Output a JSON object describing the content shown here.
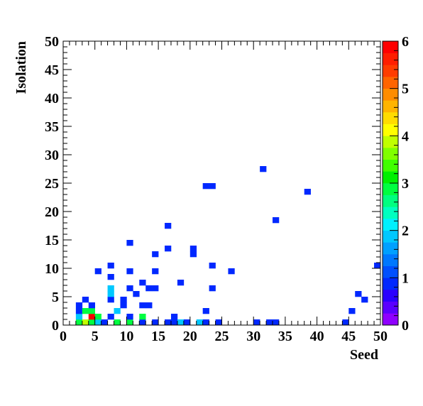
{
  "chart_data": {
    "type": "heatmap",
    "title": "",
    "xlabel": "Seed",
    "ylabel": "Isolation",
    "xlim": [
      0,
      50
    ],
    "ylim": [
      0,
      50
    ],
    "zlim": [
      0,
      6
    ],
    "bin_width": 1,
    "x_ticks": [
      "0",
      "5",
      "10",
      "15",
      "20",
      "25",
      "30",
      "35",
      "40",
      "45",
      "50"
    ],
    "y_ticks": [
      "0",
      "5",
      "10",
      "15",
      "20",
      "25",
      "30",
      "35",
      "40",
      "45",
      "50"
    ],
    "z_ticks": [
      "0",
      "1",
      "2",
      "3",
      "4",
      "5",
      "6"
    ],
    "palette": [
      "#8f00ff",
      "#5a00ff",
      "#2a00ff",
      "#0028ff",
      "#0050ff",
      "#0078ff",
      "#00a0ff",
      "#00c8ff",
      "#00f0ff",
      "#00ffc0",
      "#00ff80",
      "#00ff40",
      "#00f000",
      "#40ff00",
      "#80ff00",
      "#c0ff00",
      "#ffff00",
      "#ffdc00",
      "#ffb400",
      "#ff8c00",
      "#ff6400",
      "#ff3c00",
      "#ff1e00",
      "#ff0000"
    ],
    "bins": [
      {
        "x": 2,
        "y": 0,
        "z": 3
      },
      {
        "x": 3,
        "y": 0,
        "z": 4
      },
      {
        "x": 4,
        "y": 0,
        "z": 3
      },
      {
        "x": 5,
        "y": 0,
        "z": 2
      },
      {
        "x": 6,
        "y": 0,
        "z": 1
      },
      {
        "x": 8,
        "y": 0,
        "z": 3
      },
      {
        "x": 10,
        "y": 0,
        "z": 3
      },
      {
        "x": 12,
        "y": 0,
        "z": 1
      },
      {
        "x": 14,
        "y": 0,
        "z": 1
      },
      {
        "x": 16,
        "y": 0,
        "z": 1
      },
      {
        "x": 17,
        "y": 0,
        "z": 1
      },
      {
        "x": 18,
        "y": 0,
        "z": 2
      },
      {
        "x": 19,
        "y": 0,
        "z": 1
      },
      {
        "x": 21,
        "y": 0,
        "z": 2
      },
      {
        "x": 22,
        "y": 0,
        "z": 1
      },
      {
        "x": 24,
        "y": 0,
        "z": 1
      },
      {
        "x": 30,
        "y": 0,
        "z": 1
      },
      {
        "x": 32,
        "y": 0,
        "z": 1
      },
      {
        "x": 33,
        "y": 0,
        "z": 1
      },
      {
        "x": 44,
        "y": 0,
        "z": 1
      },
      {
        "x": 2,
        "y": 1,
        "z": 2
      },
      {
        "x": 4,
        "y": 1,
        "z": 6
      },
      {
        "x": 5,
        "y": 1,
        "z": 3
      },
      {
        "x": 7,
        "y": 1,
        "z": 1
      },
      {
        "x": 10,
        "y": 1,
        "z": 1
      },
      {
        "x": 12,
        "y": 1,
        "z": 3
      },
      {
        "x": 17,
        "y": 1,
        "z": 1
      },
      {
        "x": 2,
        "y": 2,
        "z": 1
      },
      {
        "x": 3,
        "y": 2,
        "z": 3
      },
      {
        "x": 4,
        "y": 2,
        "z": 3
      },
      {
        "x": 8,
        "y": 2,
        "z": 2
      },
      {
        "x": 22,
        "y": 2,
        "z": 1
      },
      {
        "x": 45,
        "y": 2,
        "z": 1
      },
      {
        "x": 2,
        "y": 3,
        "z": 1
      },
      {
        "x": 4,
        "y": 3,
        "z": 1
      },
      {
        "x": 9,
        "y": 3,
        "z": 1
      },
      {
        "x": 12,
        "y": 3,
        "z": 1
      },
      {
        "x": 13,
        "y": 3,
        "z": 1
      },
      {
        "x": 3,
        "y": 4,
        "z": 1
      },
      {
        "x": 7,
        "y": 4,
        "z": 1
      },
      {
        "x": 9,
        "y": 4,
        "z": 1
      },
      {
        "x": 47,
        "y": 4,
        "z": 1
      },
      {
        "x": 7,
        "y": 5,
        "z": 2
      },
      {
        "x": 11,
        "y": 5,
        "z": 1
      },
      {
        "x": 46,
        "y": 5,
        "z": 1
      },
      {
        "x": 7,
        "y": 6,
        "z": 2
      },
      {
        "x": 10,
        "y": 6,
        "z": 1
      },
      {
        "x": 13,
        "y": 6,
        "z": 1
      },
      {
        "x": 14,
        "y": 6,
        "z": 1
      },
      {
        "x": 23,
        "y": 6,
        "z": 1
      },
      {
        "x": 12,
        "y": 7,
        "z": 1
      },
      {
        "x": 18,
        "y": 7,
        "z": 1
      },
      {
        "x": 7,
        "y": 8,
        "z": 1
      },
      {
        "x": 5,
        "y": 9,
        "z": 1
      },
      {
        "x": 10,
        "y": 9,
        "z": 1
      },
      {
        "x": 14,
        "y": 9,
        "z": 1
      },
      {
        "x": 26,
        "y": 9,
        "z": 1
      },
      {
        "x": 7,
        "y": 10,
        "z": 1
      },
      {
        "x": 23,
        "y": 10,
        "z": 1
      },
      {
        "x": 49,
        "y": 10,
        "z": 1
      },
      {
        "x": 14,
        "y": 12,
        "z": 1
      },
      {
        "x": 20,
        "y": 12,
        "z": 1
      },
      {
        "x": 16,
        "y": 13,
        "z": 1
      },
      {
        "x": 20,
        "y": 13,
        "z": 1
      },
      {
        "x": 10,
        "y": 14,
        "z": 1
      },
      {
        "x": 16,
        "y": 17,
        "z": 1
      },
      {
        "x": 33,
        "y": 18,
        "z": 1
      },
      {
        "x": 38,
        "y": 23,
        "z": 1
      },
      {
        "x": 22,
        "y": 24,
        "z": 1
      },
      {
        "x": 23,
        "y": 24,
        "z": 1
      },
      {
        "x": 31,
        "y": 27,
        "z": 1
      }
    ]
  }
}
